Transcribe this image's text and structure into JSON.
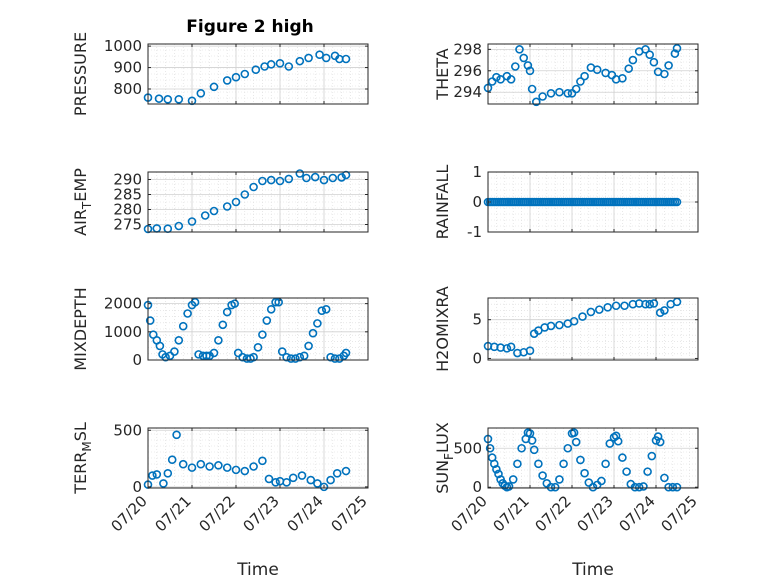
{
  "figure": {
    "title": "Figure 2 high",
    "marker_color": "#0072BD",
    "axis_color": "#262626",
    "grid_color": "#DADADA",
    "x_tick_labels": [
      "07/20",
      "07/21",
      "07/22",
      "07/23",
      "07/24",
      "07/25"
    ],
    "x_label": "Time"
  },
  "chart_data": [
    {
      "type": "scatter",
      "panel": "top-left",
      "title": "Figure 2 high",
      "ylabel": "PRESSURE",
      "ylim": [
        730,
        1010
      ],
      "yticks": [
        800,
        900,
        1000
      ],
      "xlim": [
        0,
        5
      ],
      "grid": true,
      "show_x_tick_labels": false,
      "x": [
        0.0,
        0.25,
        0.45,
        0.7,
        1.0,
        1.2,
        1.5,
        1.8,
        2.0,
        2.2,
        2.45,
        2.65,
        2.8,
        3.0,
        3.2,
        3.45,
        3.65,
        3.9,
        4.05,
        4.25,
        4.35,
        4.5
      ],
      "y": [
        760,
        755,
        752,
        752,
        745,
        780,
        810,
        840,
        855,
        870,
        890,
        905,
        915,
        920,
        905,
        930,
        945,
        960,
        945,
        955,
        940,
        940
      ]
    },
    {
      "type": "scatter",
      "panel": "top-right",
      "ylabel": "THETA",
      "ylim": [
        292.9,
        298.5
      ],
      "yticks": [
        294,
        296,
        298
      ],
      "xlim": [
        0,
        5
      ],
      "grid": true,
      "show_x_tick_labels": false,
      "x": [
        0.0,
        0.1,
        0.2,
        0.3,
        0.45,
        0.55,
        0.65,
        0.75,
        0.85,
        0.95,
        1.0,
        1.05,
        1.15,
        1.3,
        1.5,
        1.7,
        1.9,
        2.0,
        2.1,
        2.2,
        2.3,
        2.45,
        2.6,
        2.8,
        2.95,
        3.05,
        3.2,
        3.35,
        3.45,
        3.6,
        3.75,
        3.85,
        3.95,
        4.05,
        4.2,
        4.3,
        4.45,
        4.5
      ],
      "y": [
        294.4,
        295.0,
        295.4,
        295.2,
        295.5,
        295.2,
        296.4,
        298.0,
        297.2,
        296.5,
        296.0,
        294.3,
        293.1,
        293.6,
        293.9,
        294.0,
        293.9,
        293.9,
        294.3,
        295.0,
        295.5,
        296.3,
        296.1,
        295.8,
        295.6,
        295.2,
        295.3,
        296.2,
        297.0,
        297.8,
        298.0,
        297.5,
        296.8,
        295.9,
        295.7,
        296.5,
        297.6,
        298.1
      ]
    },
    {
      "type": "scatter",
      "panel": "second-left",
      "ylabel": "AIR_TEMP",
      "ylim": [
        272.5,
        292.5
      ],
      "yticks": [
        275,
        280,
        285,
        290
      ],
      "xlim": [
        0,
        5
      ],
      "grid": true,
      "show_x_tick_labels": false,
      "x": [
        0.0,
        0.2,
        0.45,
        0.7,
        1.0,
        1.3,
        1.5,
        1.8,
        2.0,
        2.2,
        2.4,
        2.6,
        2.8,
        3.0,
        3.2,
        3.45,
        3.6,
        3.8,
        4.0,
        4.2,
        4.4,
        4.5
      ],
      "y": [
        273.5,
        273.7,
        273.6,
        274.5,
        276.0,
        278.0,
        279.5,
        281.0,
        282.5,
        285.0,
        287.5,
        289.5,
        289.8,
        289.5,
        290.2,
        292.0,
        290.5,
        290.8,
        289.8,
        290.5,
        290.7,
        291.5
      ]
    },
    {
      "type": "scatter",
      "panel": "second-right",
      "ylabel": "RAINFALL",
      "ylim": [
        -1,
        1
      ],
      "yticks": [
        -1,
        0,
        1
      ],
      "xlim": [
        0,
        5
      ],
      "grid": true,
      "show_x_tick_labels": false,
      "x": [
        0.0,
        4.5
      ],
      "y": [
        0,
        0
      ]
    },
    {
      "type": "scatter",
      "panel": "third-left",
      "ylabel": "MIXDEPTH",
      "ylim": [
        0,
        2200
      ],
      "yticks": [
        0,
        1000,
        2000
      ],
      "xlim": [
        0,
        5
      ],
      "grid": true,
      "show_x_tick_labels": false,
      "x": [
        0.0,
        0.05,
        0.12,
        0.2,
        0.27,
        0.33,
        0.4,
        0.5,
        0.6,
        0.7,
        0.8,
        0.9,
        1.0,
        1.07,
        1.15,
        1.25,
        1.33,
        1.4,
        1.5,
        1.6,
        1.7,
        1.8,
        1.9,
        1.97,
        2.05,
        2.15,
        2.25,
        2.33,
        2.4,
        2.5,
        2.6,
        2.7,
        2.8,
        2.9,
        2.97,
        3.05,
        3.15,
        3.25,
        3.35,
        3.45,
        3.55,
        3.65,
        3.75,
        3.85,
        3.95,
        4.05,
        4.15,
        4.25,
        4.35,
        4.45,
        4.5
      ],
      "y": [
        1950,
        1400,
        900,
        700,
        500,
        200,
        100,
        150,
        300,
        700,
        1200,
        1650,
        1950,
        2050,
        200,
        150,
        150,
        150,
        250,
        700,
        1250,
        1700,
        1950,
        2000,
        250,
        100,
        50,
        50,
        100,
        450,
        900,
        1400,
        1800,
        2050,
        2050,
        300,
        100,
        50,
        50,
        100,
        150,
        500,
        950,
        1300,
        1750,
        1800,
        100,
        50,
        50,
        150,
        250
      ]
    },
    {
      "type": "scatter",
      "panel": "third-right",
      "ylabel": "H2OMIXRA",
      "ylim": [
        -0.2,
        7.8
      ],
      "yticks": [
        0,
        5
      ],
      "xlim": [
        0,
        5
      ],
      "grid": true,
      "show_x_tick_labels": false,
      "x": [
        0.0,
        0.15,
        0.3,
        0.45,
        0.55,
        0.7,
        0.85,
        1.0,
        1.1,
        1.2,
        1.35,
        1.5,
        1.7,
        1.9,
        2.05,
        2.25,
        2.45,
        2.65,
        2.85,
        3.05,
        3.25,
        3.45,
        3.6,
        3.75,
        3.85,
        3.95,
        4.1,
        4.2,
        4.35,
        4.5
      ],
      "y": [
        1.6,
        1.5,
        1.4,
        1.3,
        1.5,
        0.7,
        0.8,
        1.0,
        3.2,
        3.6,
        4.0,
        4.2,
        4.3,
        4.5,
        4.8,
        5.4,
        6.0,
        6.3,
        6.6,
        6.8,
        6.8,
        7.0,
        7.1,
        7.0,
        7.0,
        7.1,
        5.9,
        6.2,
        7.0,
        7.3
      ]
    },
    {
      "type": "scatter",
      "panel": "bottom-left",
      "ylabel": "TERR_MSL",
      "ylim": [
        -10,
        520
      ],
      "yticks": [
        0,
        500
      ],
      "xlim": [
        0,
        5
      ],
      "grid": true,
      "show_x_tick_labels": true,
      "xlabel": "Time",
      "x": [
        0.0,
        0.1,
        0.2,
        0.35,
        0.45,
        0.55,
        0.65,
        0.8,
        1.0,
        1.2,
        1.4,
        1.6,
        1.8,
        2.0,
        2.2,
        2.4,
        2.6,
        2.75,
        2.9,
        3.0,
        3.15,
        3.3,
        3.5,
        3.7,
        3.85,
        4.0,
        4.15,
        4.3,
        4.5
      ],
      "y": [
        20,
        100,
        110,
        30,
        120,
        240,
        460,
        200,
        170,
        200,
        180,
        190,
        170,
        150,
        140,
        180,
        230,
        70,
        40,
        50,
        40,
        80,
        100,
        60,
        30,
        0,
        60,
        120,
        140
      ]
    },
    {
      "type": "scatter",
      "panel": "bottom-right",
      "ylabel": "SUN_FLUX",
      "ylim": [
        -10,
        760
      ],
      "yticks": [
        0,
        500
      ],
      "xlim": [
        0,
        5
      ],
      "grid": true,
      "show_x_tick_labels": true,
      "xlabel": "Time",
      "x": [
        0.0,
        0.05,
        0.1,
        0.15,
        0.2,
        0.25,
        0.3,
        0.35,
        0.4,
        0.45,
        0.5,
        0.6,
        0.7,
        0.8,
        0.9,
        0.95,
        1.0,
        1.05,
        1.1,
        1.2,
        1.3,
        1.4,
        1.5,
        1.6,
        1.7,
        1.8,
        1.9,
        2.0,
        2.05,
        2.1,
        2.2,
        2.3,
        2.4,
        2.5,
        2.6,
        2.7,
        2.8,
        2.9,
        3.0,
        3.05,
        3.1,
        3.2,
        3.3,
        3.4,
        3.5,
        3.6,
        3.7,
        3.8,
        3.9,
        4.0,
        4.05,
        4.1,
        4.2,
        4.3,
        4.4,
        4.5
      ],
      "y": [
        620,
        500,
        380,
        300,
        230,
        170,
        100,
        50,
        20,
        0,
        10,
        100,
        300,
        500,
        620,
        700,
        690,
        600,
        480,
        300,
        150,
        50,
        0,
        0,
        100,
        300,
        500,
        690,
        700,
        580,
        350,
        180,
        60,
        0,
        30,
        80,
        300,
        560,
        640,
        660,
        590,
        380,
        200,
        40,
        0,
        0,
        10,
        200,
        400,
        600,
        650,
        580,
        120,
        0,
        0,
        0
      ]
    }
  ]
}
